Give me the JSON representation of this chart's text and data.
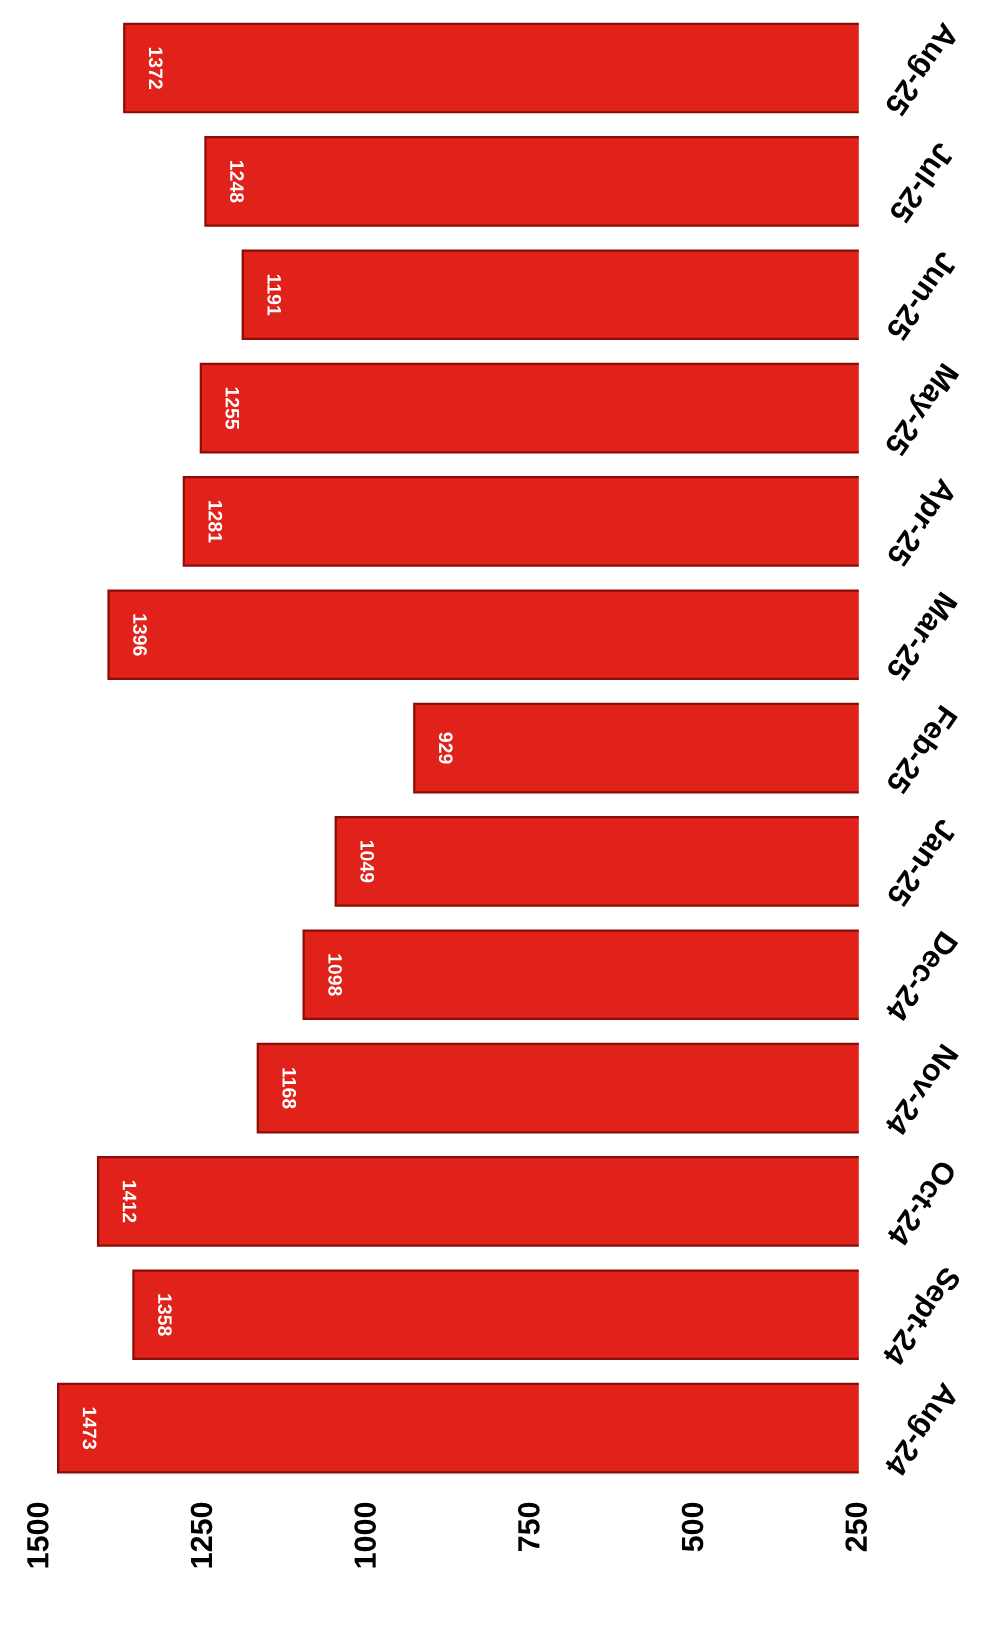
{
  "chart_data": {
    "type": "bar",
    "orientation": "horizontal",
    "categories": [
      "Aug-25",
      "Jul-25",
      "Jun-25",
      "May-25",
      "Apr-25",
      "Mar-25",
      "Feb-25",
      "Jan-25",
      "Dec-24",
      "Nov-24",
      "Oct-24",
      "Sept-24",
      "Aug-24"
    ],
    "values": [
      1372,
      1248,
      1191,
      1255,
      1281,
      1396,
      929,
      1049,
      1098,
      1168,
      1412,
      1358,
      1473
    ],
    "color": "#e0221a",
    "xlim": [
      1500,
      250
    ],
    "xticks": [
      1500,
      1250,
      1000,
      750,
      500,
      250
    ],
    "data_labels": true,
    "grid": false,
    "legend": false
  }
}
